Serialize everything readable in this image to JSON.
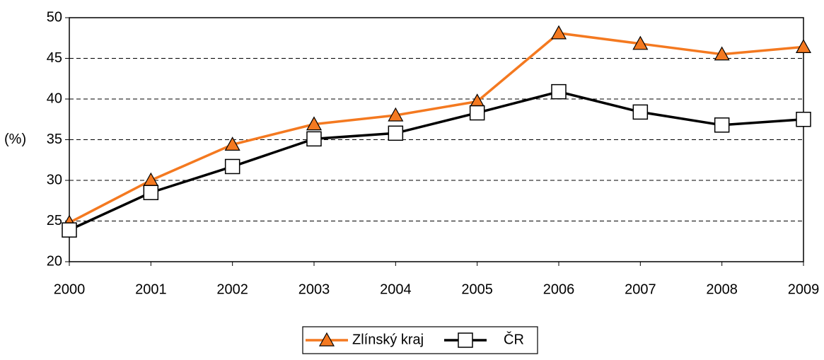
{
  "chart_data": {
    "type": "line",
    "y_label": "(%)",
    "categories": [
      "2000",
      "2001",
      "2002",
      "2003",
      "2004",
      "2005",
      "2006",
      "2007",
      "2008",
      "2009"
    ],
    "series": [
      {
        "name": "Zlínský kraj",
        "color": "#f47920",
        "marker": "triangle",
        "values": [
          24.8,
          30.0,
          34.4,
          36.9,
          38.0,
          39.7,
          48.1,
          46.8,
          45.5,
          46.4
        ]
      },
      {
        "name": "ČR",
        "color": "#000000",
        "marker": "square",
        "values": [
          23.9,
          28.5,
          31.7,
          35.1,
          35.8,
          38.3,
          40.9,
          38.4,
          36.8,
          37.5
        ]
      }
    ],
    "ylim": [
      20,
      50
    ],
    "yticks": [
      20,
      25,
      30,
      35,
      40,
      45,
      50
    ],
    "grid": true,
    "legend": "bottom"
  }
}
